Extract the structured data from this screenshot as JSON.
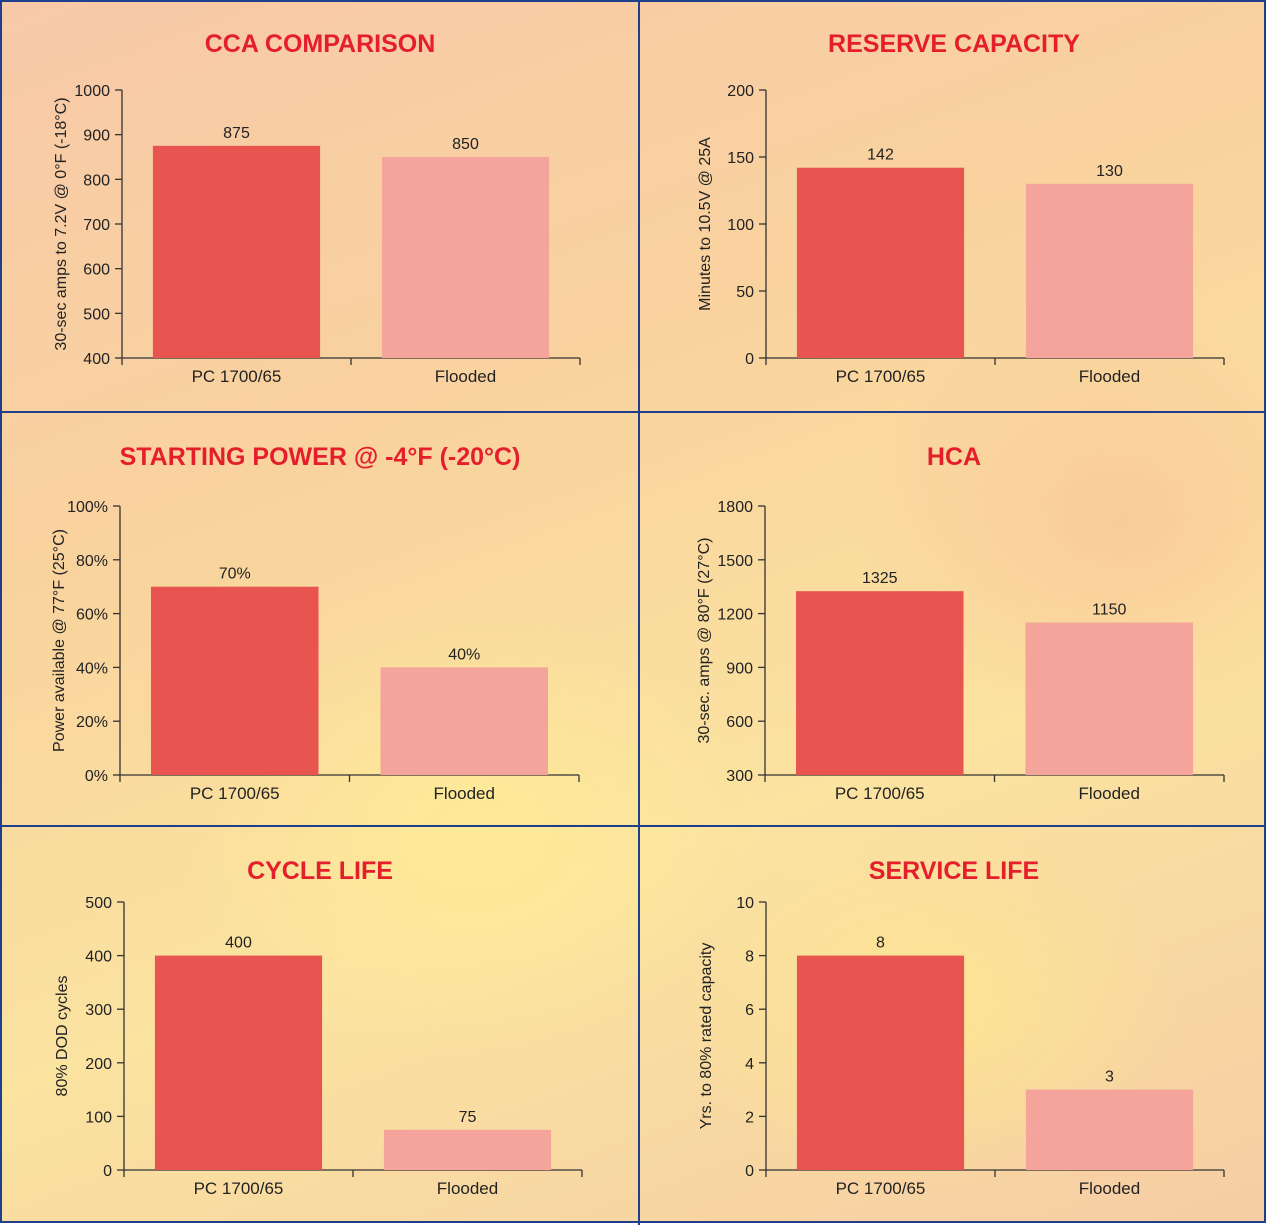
{
  "colors": {
    "pc_bar": "#e8544f",
    "flooded_bar": "#f4a49a",
    "title": "#e41e2b",
    "border": "#1f3f8c",
    "axis": "#333333"
  },
  "chart_data": [
    {
      "type": "bar",
      "title": "CCA COMPARISON",
      "ylabel": "30-sec amps to 7.2V @ 0°F (-18°C)",
      "categories": [
        "PC 1700/65",
        "Flooded"
      ],
      "values": [
        875,
        850
      ],
      "value_labels": [
        "875",
        "850"
      ],
      "ylim": [
        400,
        1000
      ],
      "yticks": [
        400,
        500,
        600,
        700,
        800,
        900,
        1000
      ],
      "ytick_labels": [
        "400",
        "500",
        "600",
        "700",
        "800",
        "900",
        "1000"
      ]
    },
    {
      "type": "bar",
      "title": "RESERVE CAPACITY",
      "ylabel": "Minutes to 10.5V @ 25A",
      "categories": [
        "PC 1700/65",
        "Flooded"
      ],
      "values": [
        142,
        130
      ],
      "value_labels": [
        "142",
        "130"
      ],
      "ylim": [
        0,
        200
      ],
      "yticks": [
        0,
        50,
        100,
        150,
        200
      ],
      "ytick_labels": [
        "0",
        "50",
        "100",
        "150",
        "200"
      ]
    },
    {
      "type": "bar",
      "title": "STARTING POWER @ -4°F (-20°C)",
      "ylabel": "Power available @ 77°F (25°C)",
      "categories": [
        "PC 1700/65",
        "Flooded"
      ],
      "values": [
        70,
        40
      ],
      "value_labels": [
        "70%",
        "40%"
      ],
      "ylim": [
        0,
        100
      ],
      "yticks": [
        0,
        20,
        40,
        60,
        80,
        100
      ],
      "ytick_labels": [
        "0%",
        "20%",
        "40%",
        "60%",
        "80%",
        "100%"
      ]
    },
    {
      "type": "bar",
      "title": "HCA",
      "ylabel": "30-sec. amps @ 80°F (27°C)",
      "categories": [
        "PC 1700/65",
        "Flooded"
      ],
      "values": [
        1325,
        1150
      ],
      "value_labels": [
        "1325",
        "1150"
      ],
      "ylim": [
        300,
        1800
      ],
      "yticks": [
        300,
        600,
        900,
        1200,
        1500,
        1800
      ],
      "ytick_labels": [
        "300",
        "600",
        "900",
        "1200",
        "1500",
        "1800"
      ]
    },
    {
      "type": "bar",
      "title": "CYCLE LIFE",
      "ylabel": "80% DOD cycles",
      "categories": [
        "PC 1700/65",
        "Flooded"
      ],
      "values": [
        400,
        75
      ],
      "value_labels": [
        "400",
        "75"
      ],
      "ylim": [
        0,
        500
      ],
      "yticks": [
        0,
        100,
        200,
        300,
        400,
        500
      ],
      "ytick_labels": [
        "0",
        "100",
        "200",
        "300",
        "400",
        "500"
      ]
    },
    {
      "type": "bar",
      "title": "SERVICE LIFE",
      "ylabel": "Yrs. to 80% rated capacity",
      "categories": [
        "PC 1700/65",
        "Flooded"
      ],
      "values": [
        8,
        3
      ],
      "value_labels": [
        "8",
        "3"
      ],
      "ylim": [
        0,
        10
      ],
      "yticks": [
        0,
        2,
        4,
        6,
        8,
        10
      ],
      "ytick_labels": [
        "0",
        "2",
        "4",
        "6",
        "8",
        "10"
      ]
    }
  ]
}
